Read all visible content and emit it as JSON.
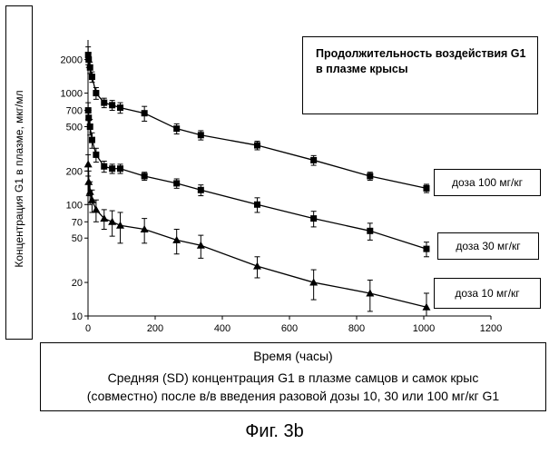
{
  "chart_data": {
    "type": "line",
    "title": "Продолжительность воздействия G1 в плазме крысы",
    "xlabel": "Время (часы)",
    "ylabel": "Концентрация G1 в плазме, мкг/мл",
    "xlim": [
      0,
      1200
    ],
    "ylim": [
      10,
      3000
    ],
    "yscale": "log",
    "x_ticks": [
      0,
      200,
      400,
      600,
      800,
      1000,
      1200
    ],
    "y_ticks": [
      10,
      20,
      50,
      70,
      100,
      200,
      500,
      700,
      1000,
      2000
    ],
    "x_tick_labels": [
      "0",
      "200",
      "400",
      "600",
      "800",
      "1000",
      "1200"
    ],
    "y_tick_labels": [
      "10",
      "20",
      "50",
      "70",
      "100",
      "200",
      "500",
      "700",
      "1000",
      "2000"
    ],
    "series": [
      {
        "name": "доза 100 мг/кг",
        "marker": "square",
        "x": [
          0.5,
          2,
          6,
          12,
          24,
          48,
          72,
          96,
          168,
          264,
          336,
          504,
          672,
          840,
          1008
        ],
        "y": [
          2200,
          2000,
          1700,
          1400,
          1000,
          820,
          780,
          740,
          660,
          480,
          420,
          340,
          250,
          180,
          140
        ],
        "err": [
          400,
          300,
          200,
          150,
          120,
          80,
          80,
          80,
          100,
          50,
          40,
          30,
          25,
          15,
          12
        ]
      },
      {
        "name": "доза 30 мг/кг",
        "marker": "square",
        "x": [
          0.5,
          2,
          6,
          12,
          24,
          48,
          72,
          96,
          168,
          264,
          336,
          504,
          672,
          840,
          1008
        ],
        "y": [
          700,
          600,
          500,
          380,
          280,
          220,
          210,
          210,
          180,
          155,
          135,
          100,
          75,
          58,
          40
        ],
        "err": [
          120,
          100,
          80,
          60,
          40,
          25,
          20,
          20,
          15,
          15,
          15,
          15,
          12,
          10,
          6
        ]
      },
      {
        "name": "доза 10 мг/кг",
        "marker": "triangle",
        "x": [
          0.5,
          2,
          6,
          12,
          24,
          48,
          72,
          96,
          168,
          264,
          336,
          504,
          672,
          840,
          1008
        ],
        "y": [
          230,
          160,
          130,
          110,
          90,
          75,
          70,
          65,
          60,
          48,
          43,
          28,
          20,
          16,
          12
        ],
        "err": [
          50,
          40,
          30,
          25,
          20,
          15,
          18,
          20,
          15,
          12,
          10,
          6,
          6,
          5,
          4
        ]
      }
    ],
    "grid": false,
    "legend_placement": "right"
  },
  "caption": {
    "line1": "Средняя (SD) концентрация G1 в плазме самцов и самок крыс",
    "line2": "(совместно) после в/в введения разовой дозы 10, 30 или 100 мг/кг G1"
  },
  "figure_label": "Фиг. 3b",
  "colors": {
    "ink": "#000000",
    "background": "#ffffff"
  }
}
